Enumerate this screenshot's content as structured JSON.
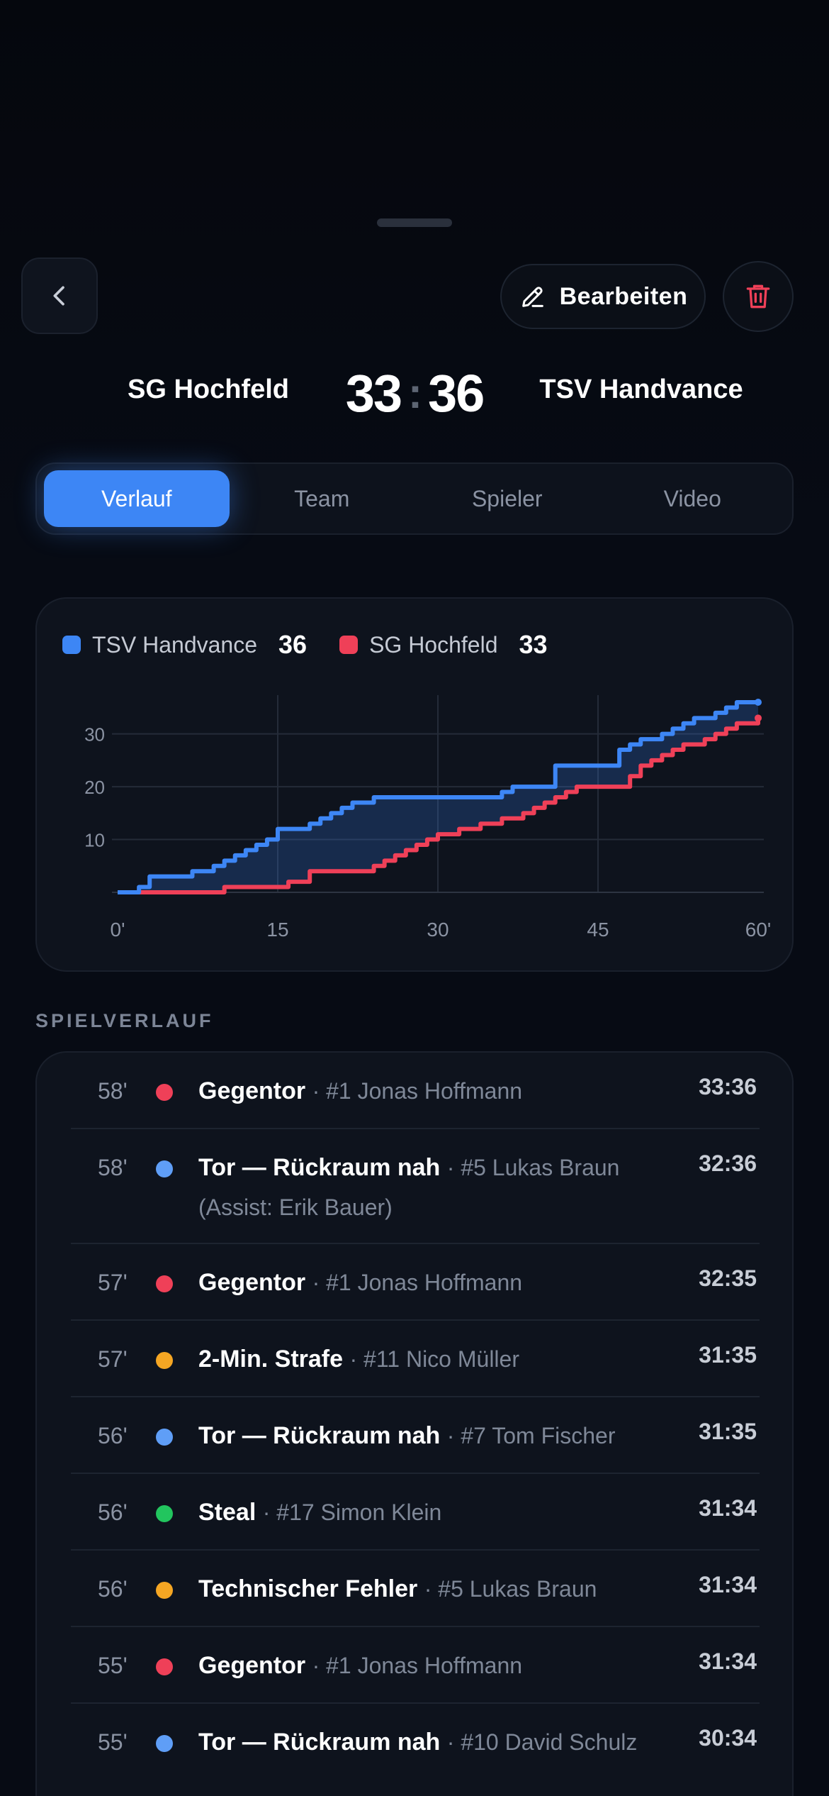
{
  "header": {
    "edit_label": "Bearbeiten",
    "icons": {
      "back": "chevron-left-icon",
      "edit": "pencil-icon",
      "delete": "trash-icon"
    },
    "colors": {
      "delete": "#ef4058"
    }
  },
  "match": {
    "home_team": "SG Hochfeld",
    "away_team": "TSV Handvance",
    "home_score": "33",
    "away_score": "36",
    "separator": ":"
  },
  "tabs": [
    {
      "label": "Verlauf",
      "active": true
    },
    {
      "label": "Team",
      "active": false
    },
    {
      "label": "Spieler",
      "active": false
    },
    {
      "label": "Video",
      "active": false
    }
  ],
  "chart_data": {
    "type": "line",
    "x_tick_labels": [
      "0'",
      "15",
      "30",
      "45",
      "60'"
    ],
    "x_ticks": [
      0,
      15,
      30,
      45,
      60
    ],
    "y_ticks": [
      10,
      20,
      30
    ],
    "xlim": [
      0,
      60
    ],
    "ylim": [
      0,
      36
    ],
    "grid": true,
    "legend_position": "top-left",
    "series": [
      {
        "name": "TSV Handvance",
        "total": "36",
        "color": "#3d86f5",
        "x": [
          0,
          2,
          3,
          7,
          9,
          10,
          11,
          12,
          13,
          14,
          15,
          18,
          19,
          20,
          21,
          22,
          24,
          36,
          37,
          41,
          47,
          48,
          49,
          51,
          52,
          53,
          54,
          56,
          57,
          58,
          60
        ],
        "y": [
          0,
          1,
          3,
          4,
          5,
          6,
          7,
          8,
          9,
          10,
          12,
          13,
          14,
          15,
          16,
          17,
          18,
          19,
          20,
          24,
          27,
          28,
          29,
          30,
          31,
          32,
          33,
          34,
          35,
          36,
          36
        ]
      },
      {
        "name": "SG Hochfeld",
        "total": "33",
        "color": "#ef4058",
        "x": [
          0,
          10,
          16,
          18,
          24,
          25,
          26,
          27,
          28,
          29,
          30,
          32,
          34,
          36,
          38,
          39,
          40,
          41,
          42,
          43,
          48,
          49,
          50,
          51,
          52,
          53,
          55,
          56,
          57,
          58,
          60
        ],
        "y": [
          0,
          1,
          2,
          4,
          5,
          6,
          7,
          8,
          9,
          10,
          11,
          12,
          13,
          14,
          15,
          16,
          17,
          18,
          19,
          20,
          22,
          24,
          25,
          26,
          27,
          28,
          29,
          30,
          31,
          32,
          33
        ]
      }
    ]
  },
  "timeline": {
    "title": "SPIELVERLAUF",
    "events": [
      {
        "minute": "58'",
        "type": "Gegentor",
        "player": "· #1 Jonas Hoffmann",
        "score": "33:36",
        "color": "#ef4058"
      },
      {
        "minute": "58'",
        "type": "Tor — Rückraum nah",
        "player": "· #5 Lukas Braun (Assist: Erik Bauer)",
        "score": "32:36",
        "color": "#5f9ef7"
      },
      {
        "minute": "57'",
        "type": "Gegentor",
        "player": "· #1 Jonas Hoffmann",
        "score": "32:35",
        "color": "#ef4058"
      },
      {
        "minute": "57'",
        "type": "2-Min. Strafe",
        "player": "· #11 Nico Müller",
        "score": "31:35",
        "color": "#f5a623"
      },
      {
        "minute": "56'",
        "type": "Tor — Rückraum nah",
        "player": "· #7 Tom Fischer",
        "score": "31:35",
        "color": "#5f9ef7"
      },
      {
        "minute": "56'",
        "type": "Steal",
        "player": "· #17 Simon Klein",
        "score": "31:34",
        "color": "#22c55e"
      },
      {
        "minute": "56'",
        "type": "Technischer Fehler",
        "player": "· #5 Lukas Braun",
        "score": "31:34",
        "color": "#f5a623"
      },
      {
        "minute": "55'",
        "type": "Gegentor",
        "player": "· #1 Jonas Hoffmann",
        "score": "31:34",
        "color": "#ef4058"
      },
      {
        "minute": "55'",
        "type": "Tor — Rückraum nah",
        "player": "· #10 David Schulz",
        "score": "30:34",
        "color": "#5f9ef7"
      }
    ]
  }
}
